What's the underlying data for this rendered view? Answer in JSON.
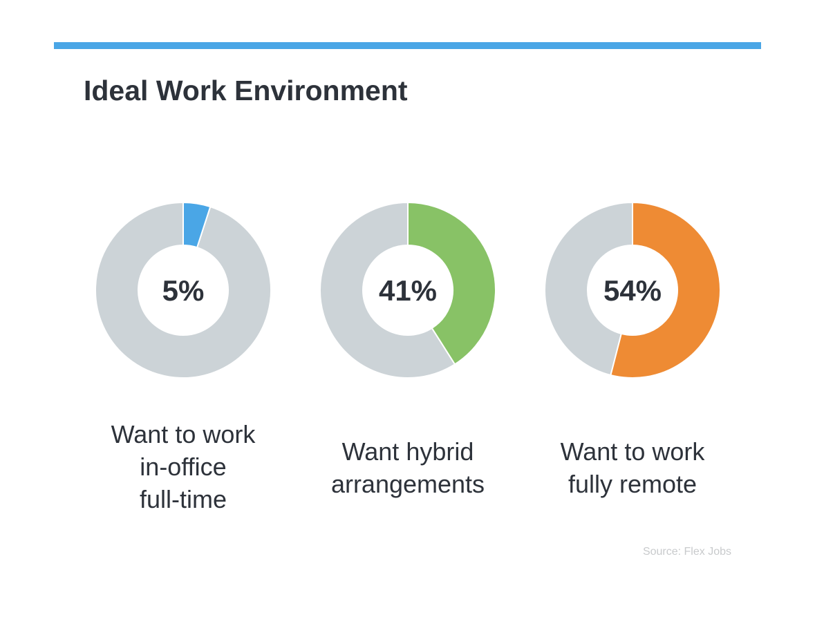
{
  "title": "Ideal Work Environment",
  "source": "Source: Flex Jobs",
  "colors": {
    "accent_bar": "#4aa6e6",
    "remainder": "#ccd3d7",
    "text": "#2d323a"
  },
  "chart_data": [
    {
      "type": "pie",
      "style": "donut",
      "value": 5,
      "value_label": "5%",
      "color": "#4aa6e6",
      "label_lines": [
        "Want to work",
        "in-office",
        "full-time"
      ]
    },
    {
      "type": "pie",
      "style": "donut",
      "value": 41,
      "value_label": "41%",
      "color": "#88c266",
      "label_lines": [
        "Want hybrid",
        "arrangements"
      ]
    },
    {
      "type": "pie",
      "style": "donut",
      "value": 54,
      "value_label": "54%",
      "color": "#ee8b34",
      "label_lines": [
        "Want to work",
        "fully remote"
      ]
    }
  ]
}
